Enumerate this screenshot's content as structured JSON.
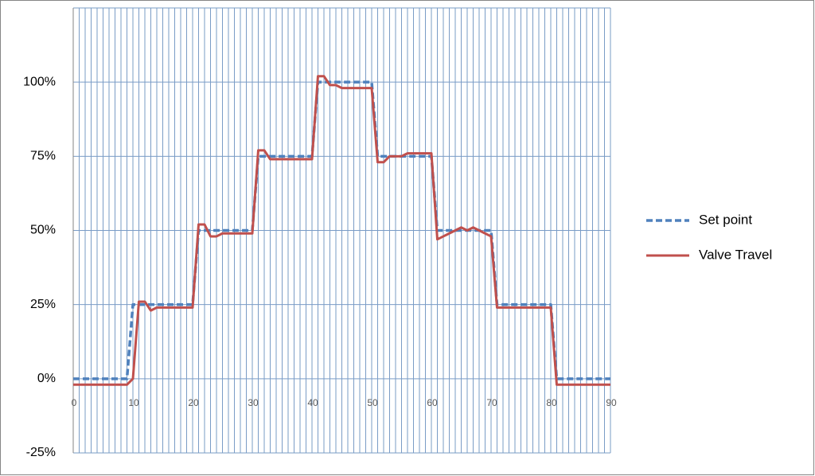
{
  "chart_data": {
    "type": "line",
    "x": [
      0,
      1,
      2,
      3,
      4,
      5,
      6,
      7,
      8,
      9,
      10,
      11,
      12,
      13,
      14,
      15,
      16,
      17,
      18,
      19,
      20,
      21,
      22,
      23,
      24,
      25,
      26,
      27,
      28,
      29,
      30,
      31,
      32,
      33,
      34,
      35,
      36,
      37,
      38,
      39,
      40,
      41,
      42,
      43,
      44,
      45,
      46,
      47,
      48,
      49,
      50,
      51,
      52,
      53,
      54,
      55,
      56,
      57,
      58,
      59,
      60,
      61,
      62,
      63,
      64,
      65,
      66,
      67,
      68,
      69,
      70,
      71,
      72,
      73,
      74,
      75,
      76,
      77,
      78,
      79,
      80,
      81,
      82,
      83,
      84,
      85,
      86,
      87,
      88,
      89,
      90
    ],
    "series": [
      {
        "name": "Set point",
        "color": "#4f81bd",
        "dash": true,
        "values": [
          0,
          0,
          0,
          0,
          0,
          0,
          0,
          0,
          0,
          0,
          25,
          25,
          25,
          25,
          25,
          25,
          25,
          25,
          25,
          25,
          25,
          50,
          50,
          50,
          50,
          50,
          50,
          50,
          50,
          50,
          50,
          75,
          75,
          75,
          75,
          75,
          75,
          75,
          75,
          75,
          75,
          100,
          100,
          100,
          100,
          100,
          100,
          100,
          100,
          100,
          100,
          75,
          75,
          75,
          75,
          75,
          75,
          75,
          75,
          75,
          75,
          50,
          50,
          50,
          50,
          50,
          50,
          50,
          50,
          50,
          50,
          25,
          25,
          25,
          25,
          25,
          25,
          25,
          25,
          25,
          25,
          0,
          0,
          0,
          0,
          0,
          0,
          0,
          0,
          0,
          0
        ]
      },
      {
        "name": "Valve Travel",
        "color": "#c0504d",
        "dash": false,
        "values": [
          -2,
          -2,
          -2,
          -2,
          -2,
          -2,
          -2,
          -2,
          -2,
          -2,
          0,
          26,
          26,
          23,
          24,
          24,
          24,
          24,
          24,
          24,
          24,
          52,
          52,
          48,
          48,
          49,
          49,
          49,
          49,
          49,
          49,
          77,
          77,
          74,
          74,
          74,
          74,
          74,
          74,
          74,
          74,
          102,
          102,
          99,
          99,
          98,
          98,
          98,
          98,
          98,
          98,
          73,
          73,
          75,
          75,
          75,
          76,
          76,
          76,
          76,
          76,
          47,
          48,
          49,
          50,
          51,
          50,
          51,
          50,
          49,
          48,
          24,
          24,
          24,
          24,
          24,
          24,
          24,
          24,
          24,
          24,
          -2,
          -2,
          -2,
          -2,
          -2,
          -2,
          -2,
          -2,
          -2,
          -2
        ]
      }
    ],
    "xlim": [
      0,
      90
    ],
    "xticks": [
      0,
      10,
      20,
      30,
      40,
      50,
      60,
      70,
      80,
      90
    ],
    "xminorticks": [
      0,
      1,
      2,
      3,
      4,
      5,
      6,
      7,
      8,
      9,
      10,
      11,
      12,
      13,
      14,
      15,
      16,
      17,
      18,
      19,
      20,
      21,
      22,
      23,
      24,
      25,
      26,
      27,
      28,
      29,
      30,
      31,
      32,
      33,
      34,
      35,
      36,
      37,
      38,
      39,
      40,
      41,
      42,
      43,
      44,
      45,
      46,
      47,
      48,
      49,
      50,
      51,
      52,
      53,
      54,
      55,
      56,
      57,
      58,
      59,
      60,
      61,
      62,
      63,
      64,
      65,
      66,
      67,
      68,
      69,
      70,
      71,
      72,
      73,
      74,
      75,
      76,
      77,
      78,
      79,
      80,
      81,
      82,
      83,
      84,
      85,
      86,
      87,
      88,
      89,
      90
    ],
    "ylim": [
      -25,
      125
    ],
    "yticks": [
      {
        "value": -25,
        "label": "-25%"
      },
      {
        "value": 0,
        "label": "0%"
      },
      {
        "value": 25,
        "label": "25%"
      },
      {
        "value": 50,
        "label": "50%"
      },
      {
        "value": 75,
        "label": "75%"
      },
      {
        "value": 100,
        "label": "100%"
      }
    ],
    "grid": true,
    "legend": "right"
  }
}
